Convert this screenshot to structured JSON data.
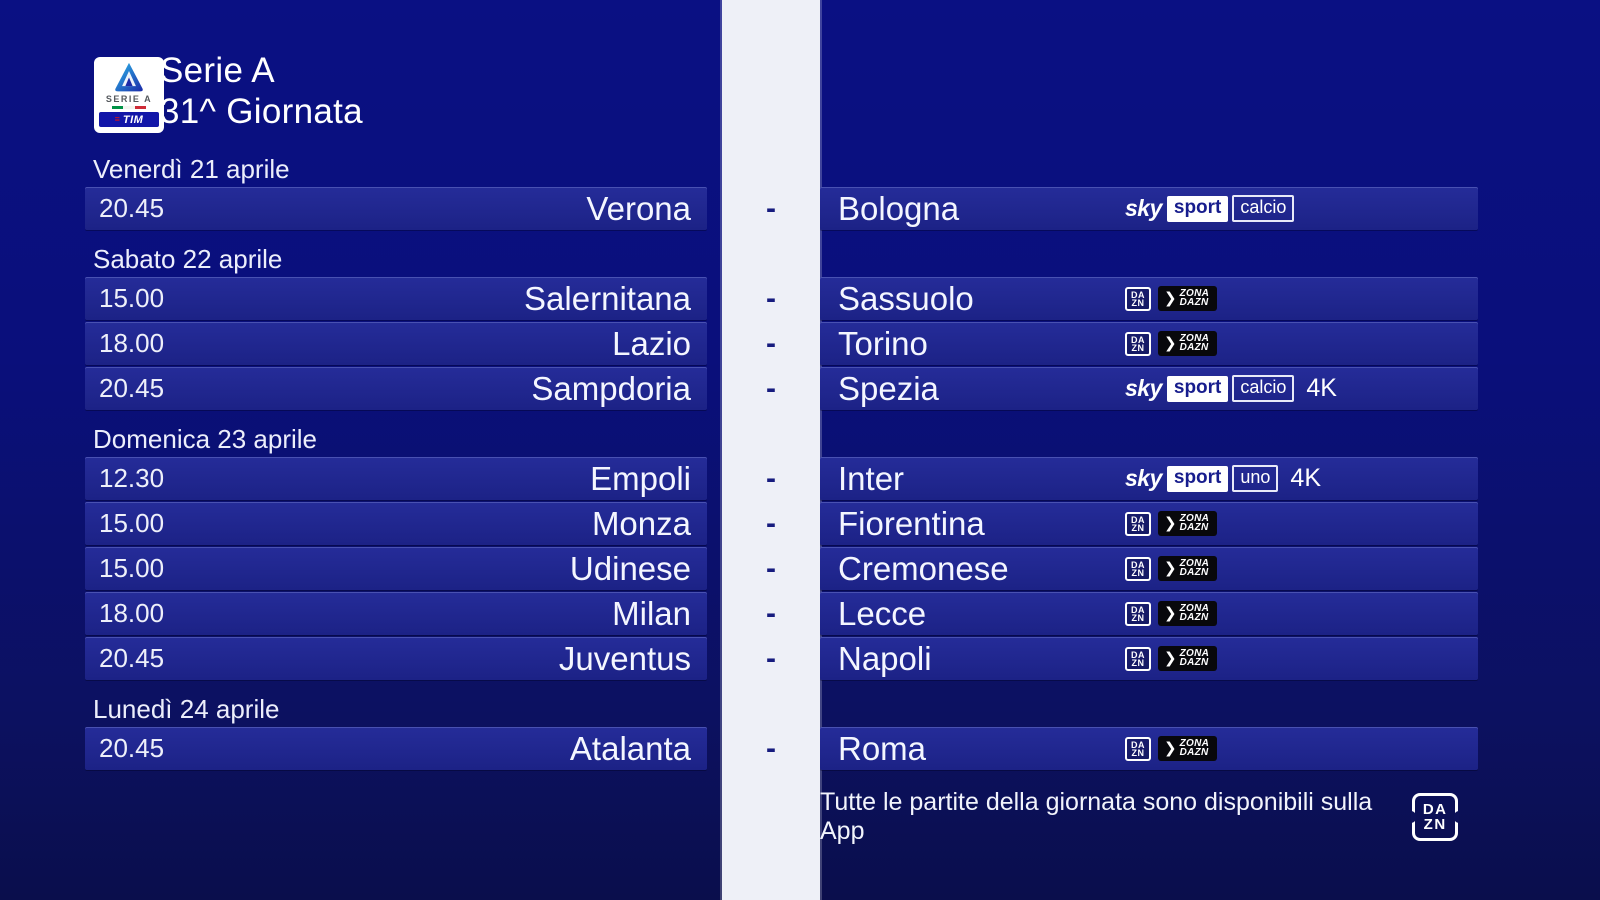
{
  "header": {
    "title_line1": "Serie A",
    "title_line2": "31^ Giornata",
    "logo": {
      "league_text": "SERIE A",
      "sponsor_text": "TIM",
      "sponsor_lines_glyph": "≡"
    }
  },
  "separator": "-",
  "four_k_label": "4K",
  "broadcasters": {
    "sky_sport_calcio": {
      "type": "sky",
      "sky": "sky",
      "sport": "sport",
      "channel": "calcio"
    },
    "sky_sport_uno": {
      "type": "sky",
      "sky": "sky",
      "sport": "sport",
      "channel": "uno"
    },
    "zona_dazn": {
      "type": "dazn",
      "dazn_line1": "DA",
      "dazn_line2": "ZN",
      "chevron": "❯",
      "zona_line1": "ZONA",
      "zona_line2": "DAZN"
    }
  },
  "sections": [
    {
      "date": "Venerdì 21 aprile",
      "matches": [
        {
          "time": "20.45",
          "home": "Verona",
          "away": "Bologna",
          "broadcaster": "sky_sport_calcio",
          "four_k": false
        }
      ]
    },
    {
      "date": "Sabato 22 aprile",
      "matches": [
        {
          "time": "15.00",
          "home": "Salernitana",
          "away": "Sassuolo",
          "broadcaster": "zona_dazn",
          "four_k": false
        },
        {
          "time": "18.00",
          "home": "Lazio",
          "away": "Torino",
          "broadcaster": "zona_dazn",
          "four_k": false
        },
        {
          "time": "20.45",
          "home": "Sampdoria",
          "away": "Spezia",
          "broadcaster": "sky_sport_calcio",
          "four_k": true
        }
      ]
    },
    {
      "date": "Domenica 23 aprile",
      "matches": [
        {
          "time": "12.30",
          "home": "Empoli",
          "away": "Inter",
          "broadcaster": "sky_sport_uno",
          "four_k": true
        },
        {
          "time": "15.00",
          "home": "Monza",
          "away": "Fiorentina",
          "broadcaster": "zona_dazn",
          "four_k": false
        },
        {
          "time": "15.00",
          "home": "Udinese",
          "away": "Cremonese",
          "broadcaster": "zona_dazn",
          "four_k": false
        },
        {
          "time": "18.00",
          "home": "Milan",
          "away": "Lecce",
          "broadcaster": "zona_dazn",
          "four_k": false
        },
        {
          "time": "20.45",
          "home": "Juventus",
          "away": "Napoli",
          "broadcaster": "zona_dazn",
          "four_k": false
        }
      ]
    },
    {
      "date": "Lunedì 24 aprile",
      "matches": [
        {
          "time": "20.45",
          "home": "Atalanta",
          "away": "Roma",
          "broadcaster": "zona_dazn",
          "four_k": false
        }
      ]
    }
  ],
  "footer": {
    "text": "Tutte le partite della giornata sono disponibili sulla App",
    "dazn_line1": "DA",
    "dazn_line2": "ZN"
  },
  "colors": {
    "background_top": "#0a1083",
    "background_bottom": "#0a0e4c",
    "row_bar": "#1d2287",
    "center_stripe": "#eef0f7",
    "separator_dash": "#161b7e",
    "sky_box_text": "#171d8d",
    "flag_green": "#009246",
    "flag_white": "#f4f5f0",
    "flag_red": "#ce2b37",
    "tim_bar_blue": "#1216a8",
    "tim_red": "#e01111"
  }
}
